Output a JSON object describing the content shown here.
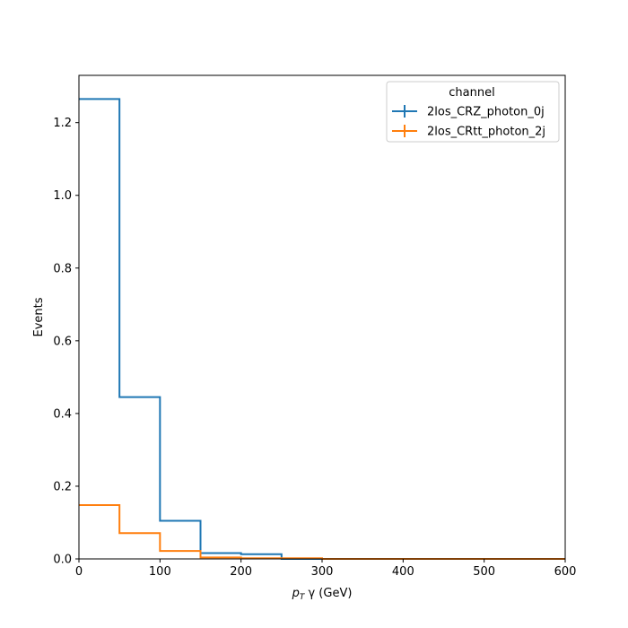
{
  "chart_data": {
    "type": "histogram-step",
    "xlabel_main": "p",
    "xlabel_sub": "T",
    "xlabel_rest": " γ (GeV)",
    "ylabel": "Events",
    "xlim": [
      0,
      600
    ],
    "ylim": [
      0,
      1.33
    ],
    "xticks": [
      0,
      100,
      200,
      300,
      400,
      500,
      600
    ],
    "yticks": [
      0.0,
      0.2,
      0.4,
      0.6,
      0.8,
      1.0,
      1.2
    ],
    "bin_edges": [
      0,
      50,
      100,
      150,
      200,
      250,
      300,
      350,
      400,
      450,
      500,
      550,
      600
    ],
    "legend_title": "channel",
    "legend_position": "upper right",
    "series": [
      {
        "name": "2los_CRZ_photon_0j",
        "color": "#1f77b4",
        "values": [
          1.265,
          0.445,
          0.105,
          0.016,
          0.013,
          0.0,
          0.0,
          0.0,
          0.0,
          0.0,
          0.0,
          0.0
        ]
      },
      {
        "name": "2los_CRtt_photon_2j",
        "color": "#ff7f0e",
        "values": [
          0.148,
          0.071,
          0.022,
          0.004,
          0.002,
          0.002,
          0.0,
          0.0,
          0.0,
          0.0,
          0.0,
          0.0
        ]
      }
    ]
  }
}
